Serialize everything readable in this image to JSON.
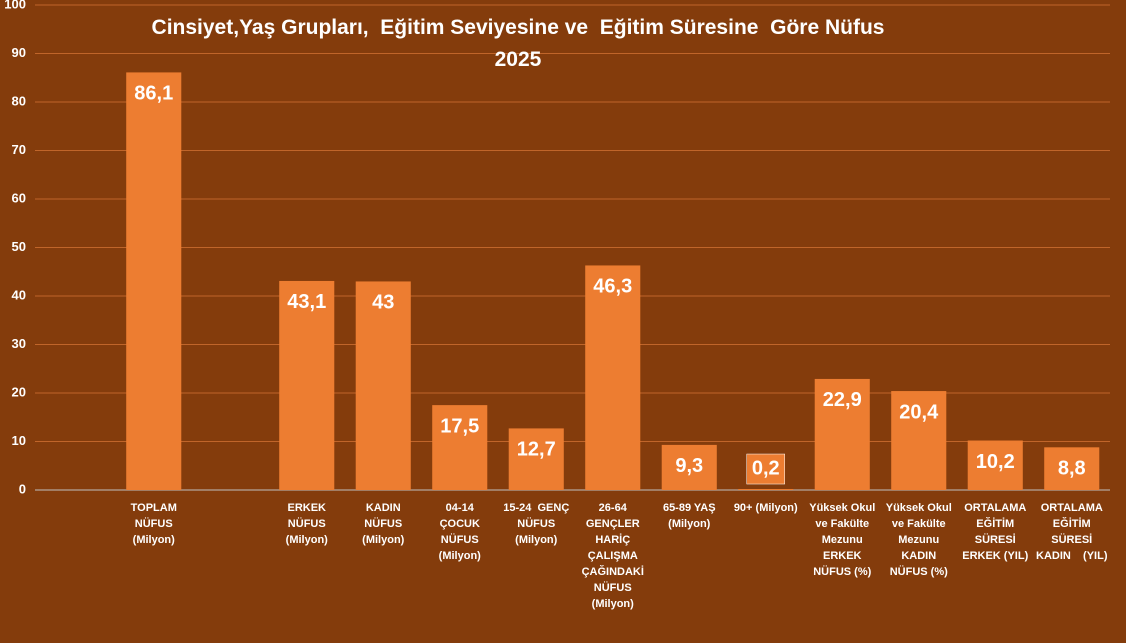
{
  "chart_data": {
    "type": "bar",
    "title": "Cinsiyet,Yaş Grupları,  Eğitim Seviyesine ve  Eğitim Süresine  Göre Nüfus\n2025",
    "categories": [
      null,
      "TOPLAM\nNÜFUS\n(Milyon)",
      null,
      "ERKEK\nNÜFUS\n(Milyon)",
      "KADIN\nNÜFUS\n(Milyon)",
      "04-14\nÇOCUK\nNÜFUS\n(Milyon)",
      "15-24  GENÇ\nNÜFUS\n(Milyon)",
      "26-64\nGENÇLER\nHARİÇ\nÇALIŞMA\nÇAĞINDAKİ\nNÜFUS\n(Milyon)",
      "65-89 YAŞ\n(Milyon)",
      "90+ (Milyon)",
      "Yüksek Okul\nve Fakülte\nMezunu\nERKEK\nNÜFUS (%)",
      "Yüksek Okul\nve Fakülte\nMezunu\nKADIN\nNÜFUS (%)",
      "ORTALAMA\nEĞİTİM\nSÜRESİ\nERKEK (YIL)",
      "ORTALAMA\nEĞİTİM\nSÜRESİ\nKADIN    (YIL)"
    ],
    "values": [
      null,
      86.1,
      null,
      43.1,
      43,
      17.5,
      12.7,
      46.3,
      9.3,
      0.2,
      22.9,
      20.4,
      10.2,
      8.8
    ],
    "value_labels": [
      null,
      "86,1",
      null,
      "43,1",
      "43",
      "17,5",
      "12,7",
      "46,3",
      "9,3",
      "0,2",
      "22,9",
      "20,4",
      "10,2",
      "8,8"
    ],
    "color": "#ED7D31",
    "ylim": [
      0,
      100
    ],
    "yticks": [
      0,
      10,
      20,
      30,
      40,
      50,
      60,
      70,
      80,
      90,
      100
    ],
    "grid": true
  }
}
